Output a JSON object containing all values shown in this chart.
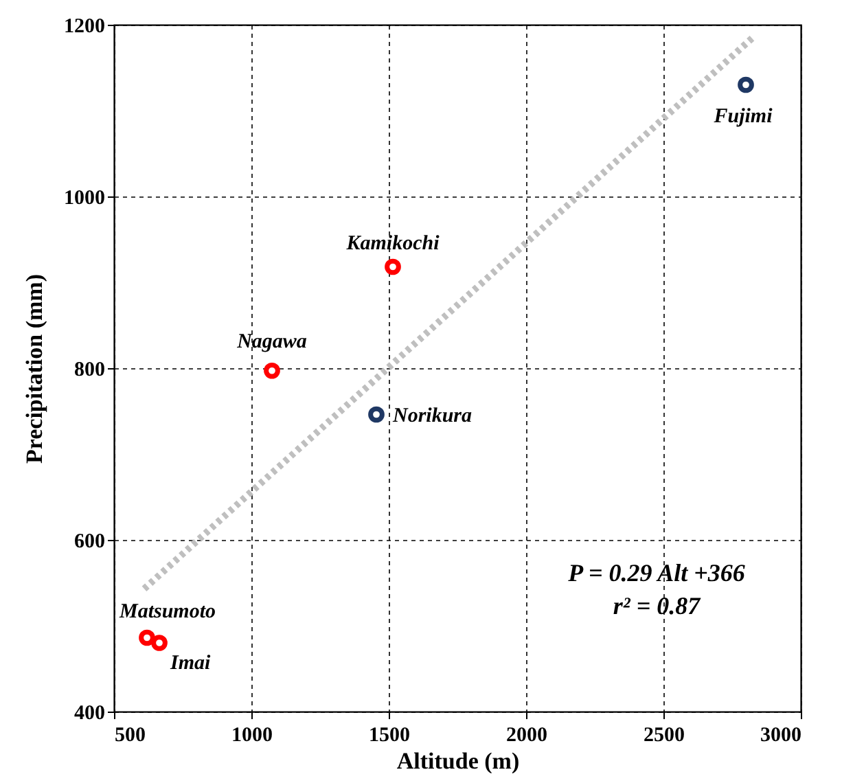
{
  "chart_data": {
    "type": "scatter",
    "xlabel": "Altitude (m)",
    "ylabel": "Precipitation (mm)",
    "xlim": [
      500,
      3000
    ],
    "xticks": [
      500,
      1000,
      1500,
      2000,
      2500,
      3000
    ],
    "ylim": [
      400,
      1200
    ],
    "yticks": [
      400,
      600,
      800,
      1000,
      1200
    ],
    "grid": true,
    "marker": "circle",
    "series": [
      {
        "color": "#ff0000",
        "x": [
          620,
          665,
          1075,
          1515
        ],
        "values": [
          486,
          480,
          797,
          918
        ]
      },
      {
        "color": "#1f3864",
        "x": [
          1455,
          2800
        ],
        "values": [
          746,
          1130
        ]
      },
      {
        "type": "line",
        "color": "#bfbfbf",
        "line_style": "dotted",
        "marker": "none",
        "x": [
          610,
          2825
        ],
        "values": [
          543,
          1185
        ]
      }
    ],
    "annotations": [
      {
        "text": "Matsumoto",
        "x": 620,
        "y": 486
      },
      {
        "text": "Imai",
        "x": 665,
        "y": 480
      },
      {
        "text": "Nagawa",
        "x": 1075,
        "y": 797
      },
      {
        "text": "Kamikochi",
        "x": 1515,
        "y": 918
      },
      {
        "text": "Norikura",
        "x": 1455,
        "y": 746
      },
      {
        "text": "Fujimi",
        "x": 2800,
        "y": 1130
      },
      "P = 0.29 Alt +366",
      "r² = 0.87"
    ]
  }
}
